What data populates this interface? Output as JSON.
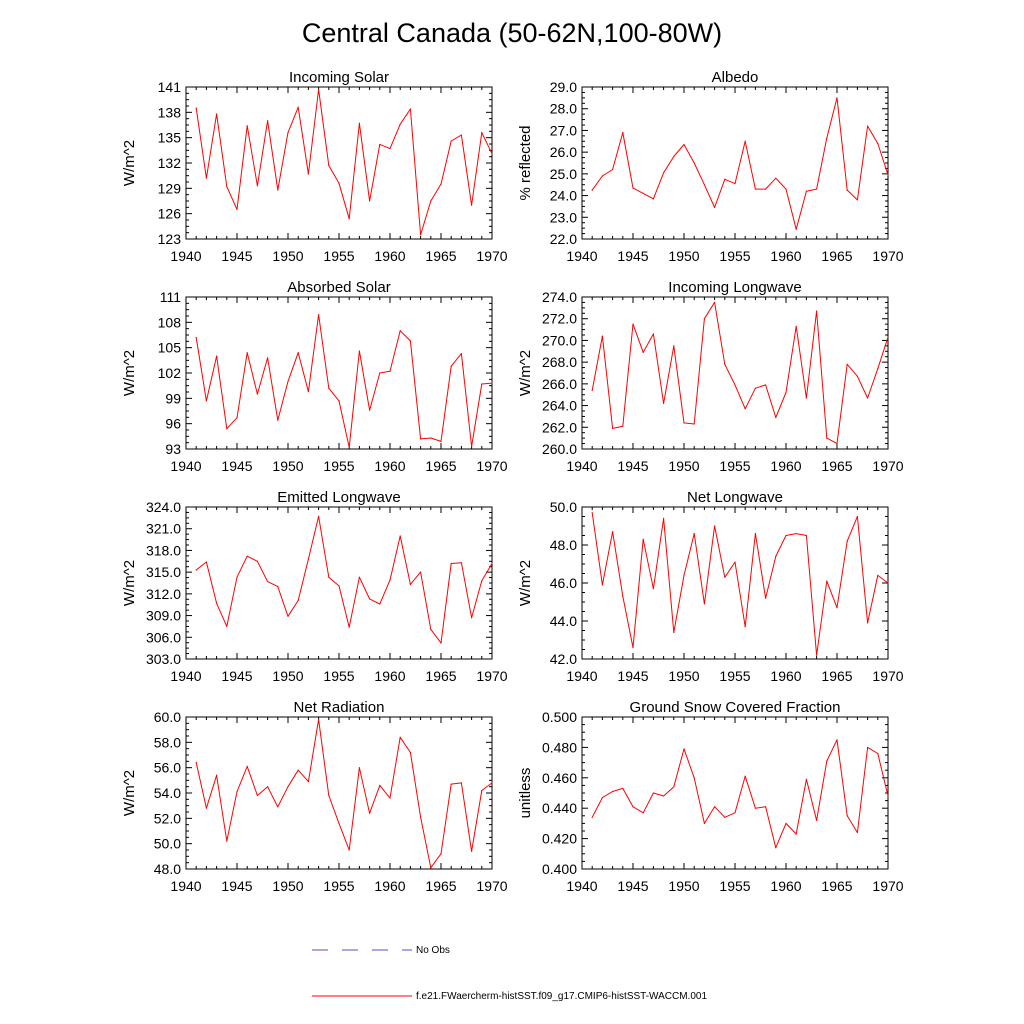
{
  "title": "Central Canada (50-62N,100-80W)",
  "chart_data": [
    {
      "type": "line",
      "title": "Incoming Solar",
      "ylabel": "W/m^2",
      "xlim": [
        1940,
        1970
      ],
      "ylim": [
        123,
        141
      ],
      "xticks": [
        1940,
        1945,
        1950,
        1955,
        1960,
        1965,
        1970
      ],
      "xtick_labels": [
        "1940",
        "1945",
        "1950",
        "1955",
        "1960",
        "1965",
        "1970"
      ],
      "yticks": [
        123,
        126,
        129,
        132,
        135,
        138,
        141
      ],
      "ytick_labels": [
        "123",
        "126",
        "129",
        "132",
        "135",
        "138",
        "141"
      ],
      "x": [
        1941,
        1942,
        1943,
        1944,
        1945,
        1946,
        1947,
        1948,
        1949,
        1950,
        1951,
        1952,
        1953,
        1954,
        1955,
        1956,
        1957,
        1958,
        1959,
        1960,
        1961,
        1962,
        1963,
        1964,
        1965,
        1966,
        1967,
        1968,
        1969,
        1970
      ],
      "series": [
        {
          "name": "f.e21.FWaercherm-histSST.f09_g17.CMIP6-histSST-WACCM.001",
          "color": "#ff0000",
          "values": [
            138.5,
            130.2,
            137.8,
            129.2,
            126.5,
            136.4,
            129.3,
            137.0,
            128.8,
            135.6,
            138.6,
            130.7,
            140.7,
            131.7,
            129.6,
            125.4,
            136.7,
            127.5,
            134.2,
            133.7,
            136.6,
            138.4,
            123.5,
            127.5,
            129.5,
            134.6,
            135.3,
            127.0,
            135.6,
            133.1
          ]
        }
      ]
    },
    {
      "type": "line",
      "title": "Albedo",
      "ylabel": "% reflected",
      "xlim": [
        1940,
        1970
      ],
      "ylim": [
        22.0,
        29.0
      ],
      "xticks": [
        1940,
        1945,
        1950,
        1955,
        1960,
        1965,
        1970
      ],
      "xtick_labels": [
        "1940",
        "1945",
        "1950",
        "1955",
        "1960",
        "1965",
        "1970"
      ],
      "yticks": [
        22.0,
        23.0,
        24.0,
        25.0,
        26.0,
        27.0,
        28.0,
        29.0
      ],
      "ytick_labels": [
        "22.0",
        "23.0",
        "24.0",
        "25.0",
        "26.0",
        "27.0",
        "28.0",
        "29.0"
      ],
      "x": [
        1941,
        1942,
        1943,
        1944,
        1945,
        1946,
        1947,
        1948,
        1949,
        1950,
        1951,
        1952,
        1953,
        1954,
        1955,
        1956,
        1957,
        1958,
        1959,
        1960,
        1961,
        1962,
        1963,
        1964,
        1965,
        1966,
        1967,
        1968,
        1969,
        1970
      ],
      "series": [
        {
          "name": "f.e21.FWaercherm-histSST.f09_g17.CMIP6-histSST-WACCM.001",
          "color": "#ff0000",
          "values": [
            24.25,
            24.9,
            25.2,
            26.9,
            24.35,
            24.1,
            23.85,
            25.05,
            25.8,
            26.35,
            25.5,
            24.5,
            23.45,
            24.75,
            24.55,
            26.5,
            24.3,
            24.3,
            24.8,
            24.3,
            22.45,
            24.2,
            24.3,
            26.65,
            28.5,
            24.25,
            23.8,
            27.2,
            26.4,
            24.95
          ]
        }
      ]
    },
    {
      "type": "line",
      "title": "Absorbed Solar",
      "ylabel": "W/m^2",
      "xlim": [
        1940,
        1970
      ],
      "ylim": [
        93,
        111
      ],
      "xticks": [
        1940,
        1945,
        1950,
        1955,
        1960,
        1965,
        1970
      ],
      "xtick_labels": [
        "1940",
        "1945",
        "1950",
        "1955",
        "1960",
        "1965",
        "1970"
      ],
      "yticks": [
        93,
        96,
        99,
        102,
        105,
        108,
        111
      ],
      "ytick_labels": [
        "93",
        "96",
        "99",
        "102",
        "105",
        "108",
        "111"
      ],
      "x": [
        1941,
        1942,
        1943,
        1944,
        1945,
        1946,
        1947,
        1948,
        1949,
        1950,
        1951,
        1952,
        1953,
        1954,
        1955,
        1956,
        1957,
        1958,
        1959,
        1960,
        1961,
        1962,
        1963,
        1964,
        1965,
        1966,
        1967,
        1968,
        1969,
        1970
      ],
      "series": [
        {
          "name": "f.e21.FWaercherm-histSST.f09_g17.CMIP6-histSST-WACCM.001",
          "color": "#ff0000",
          "values": [
            106.2,
            98.7,
            104.0,
            95.4,
            96.7,
            104.4,
            99.5,
            103.8,
            96.4,
            101.0,
            104.4,
            99.8,
            108.9,
            100.2,
            98.7,
            93.2,
            104.6,
            97.6,
            102.0,
            102.2,
            107.0,
            105.8,
            94.2,
            94.3,
            93.9,
            102.8,
            104.3,
            93.3,
            100.7,
            100.8
          ]
        }
      ]
    },
    {
      "type": "line",
      "title": "Incoming Longwave",
      "ylabel": "W/m^2",
      "xlim": [
        1940,
        1970
      ],
      "ylim": [
        260.0,
        274.0
      ],
      "xticks": [
        1940,
        1945,
        1950,
        1955,
        1960,
        1965,
        1970
      ],
      "xtick_labels": [
        "1940",
        "1945",
        "1950",
        "1955",
        "1960",
        "1965",
        "1970"
      ],
      "yticks": [
        260.0,
        262.0,
        264.0,
        266.0,
        268.0,
        270.0,
        272.0,
        274.0
      ],
      "ytick_labels": [
        "260.0",
        "262.0",
        "264.0",
        "266.0",
        "268.0",
        "270.0",
        "272.0",
        "274.0"
      ],
      "x": [
        1941,
        1942,
        1943,
        1944,
        1945,
        1946,
        1947,
        1948,
        1949,
        1950,
        1951,
        1952,
        1953,
        1954,
        1955,
        1956,
        1957,
        1958,
        1959,
        1960,
        1961,
        1962,
        1963,
        1964,
        1965,
        1966,
        1967,
        1968,
        1969,
        1970
      ],
      "series": [
        {
          "name": "f.e21.FWaercherm-histSST.f09_g17.CMIP6-histSST-WACCM.001",
          "color": "#ff0000",
          "values": [
            265.4,
            270.4,
            261.9,
            262.1,
            271.5,
            268.9,
            270.6,
            264.2,
            269.5,
            262.4,
            262.3,
            272.0,
            273.5,
            267.8,
            265.9,
            263.7,
            265.6,
            265.9,
            262.9,
            265.2,
            271.3,
            264.7,
            272.7,
            261.0,
            260.5,
            267.8,
            266.7,
            264.7,
            267.4,
            270.3
          ]
        }
      ]
    },
    {
      "type": "line",
      "title": "Emitted Longwave",
      "ylabel": "W/m^2",
      "xlim": [
        1940,
        1970
      ],
      "ylim": [
        303.0,
        324.0
      ],
      "xticks": [
        1940,
        1945,
        1950,
        1955,
        1960,
        1965,
        1970
      ],
      "xtick_labels": [
        "1940",
        "1945",
        "1950",
        "1955",
        "1960",
        "1965",
        "1970"
      ],
      "yticks": [
        303.0,
        306.0,
        309.0,
        312.0,
        315.0,
        318.0,
        321.0,
        324.0
      ],
      "ytick_labels": [
        "303.0",
        "306.0",
        "309.0",
        "312.0",
        "315.0",
        "318.0",
        "321.0",
        "324.0"
      ],
      "x": [
        1941,
        1942,
        1943,
        1944,
        1945,
        1946,
        1947,
        1948,
        1949,
        1950,
        1951,
        1952,
        1953,
        1954,
        1955,
        1956,
        1957,
        1958,
        1959,
        1960,
        1961,
        1962,
        1963,
        1964,
        1965,
        1966,
        1967,
        1968,
        1969,
        1970
      ],
      "series": [
        {
          "name": "f.e21.FWaercherm-histSST.f09_g17.CMIP6-histSST-WACCM.001",
          "color": "#ff0000",
          "values": [
            315.3,
            316.4,
            310.7,
            307.5,
            314.3,
            317.2,
            316.5,
            313.7,
            313.0,
            308.9,
            311.1,
            316.8,
            322.7,
            314.3,
            313.1,
            307.4,
            314.3,
            311.3,
            310.6,
            313.9,
            320.0,
            313.3,
            315.0,
            307.1,
            305.2,
            316.2,
            316.3,
            308.7,
            313.8,
            316.2
          ]
        }
      ]
    },
    {
      "type": "line",
      "title": "Net Longwave",
      "ylabel": "W/m^2",
      "xlim": [
        1940,
        1970
      ],
      "ylim": [
        42.0,
        50.0
      ],
      "xticks": [
        1940,
        1945,
        1950,
        1955,
        1960,
        1965,
        1970
      ],
      "xtick_labels": [
        "1940",
        "1945",
        "1950",
        "1955",
        "1960",
        "1965",
        "1970"
      ],
      "yticks": [
        42.0,
        44.0,
        46.0,
        48.0,
        50.0
      ],
      "ytick_labels": [
        "42.0",
        "44.0",
        "46.0",
        "48.0",
        "50.0"
      ],
      "x": [
        1941,
        1942,
        1943,
        1944,
        1945,
        1946,
        1947,
        1948,
        1949,
        1950,
        1951,
        1952,
        1953,
        1954,
        1955,
        1956,
        1957,
        1958,
        1959,
        1960,
        1961,
        1962,
        1963,
        1964,
        1965,
        1966,
        1967,
        1968,
        1969,
        1970
      ],
      "series": [
        {
          "name": "f.e21.FWaercherm-histSST.f09_g17.CMIP6-histSST-WACCM.001",
          "color": "#ff0000",
          "values": [
            49.7,
            45.9,
            48.7,
            45.3,
            42.6,
            48.3,
            45.7,
            49.4,
            43.4,
            46.4,
            48.6,
            44.9,
            49.0,
            46.3,
            47.1,
            43.7,
            48.6,
            45.2,
            47.4,
            48.5,
            48.6,
            48.5,
            42.2,
            46.1,
            44.7,
            48.2,
            49.5,
            43.9,
            46.4,
            46.0
          ]
        }
      ]
    },
    {
      "type": "line",
      "title": "Net Radiation",
      "ylabel": "W/m^2",
      "xlim": [
        1940,
        1970
      ],
      "ylim": [
        48.0,
        60.0
      ],
      "xticks": [
        1940,
        1945,
        1950,
        1955,
        1960,
        1965,
        1970
      ],
      "xtick_labels": [
        "1940",
        "1945",
        "1950",
        "1955",
        "1960",
        "1965",
        "1970"
      ],
      "yticks": [
        48.0,
        50.0,
        52.0,
        54.0,
        56.0,
        58.0,
        60.0
      ],
      "ytick_labels": [
        "48.0",
        "50.0",
        "52.0",
        "54.0",
        "56.0",
        "58.0",
        "60.0"
      ],
      "x": [
        1941,
        1942,
        1943,
        1944,
        1945,
        1946,
        1947,
        1948,
        1949,
        1950,
        1951,
        1952,
        1953,
        1954,
        1955,
        1956,
        1957,
        1958,
        1959,
        1960,
        1961,
        1962,
        1963,
        1964,
        1965,
        1966,
        1967,
        1968,
        1969,
        1970
      ],
      "series": [
        {
          "name": "f.e21.FWaercherm-histSST.f09_g17.CMIP6-histSST-WACCM.001",
          "color": "#ff0000",
          "values": [
            56.4,
            52.8,
            55.4,
            50.2,
            54.1,
            56.1,
            53.8,
            54.5,
            52.9,
            54.5,
            55.8,
            54.9,
            59.8,
            53.8,
            51.6,
            49.5,
            56.0,
            52.4,
            54.6,
            53.6,
            58.4,
            57.2,
            52.1,
            48.1,
            49.2,
            54.7,
            54.8,
            49.4,
            54.2,
            54.8
          ]
        }
      ]
    },
    {
      "type": "line",
      "title": "Ground Snow Covered Fraction",
      "ylabel": "unitless",
      "xlim": [
        1940,
        1970
      ],
      "ylim": [
        0.4,
        0.5
      ],
      "xticks": [
        1940,
        1945,
        1950,
        1955,
        1960,
        1965,
        1970
      ],
      "xtick_labels": [
        "1940",
        "1945",
        "1950",
        "1955",
        "1960",
        "1965",
        "1970"
      ],
      "yticks": [
        0.4,
        0.42,
        0.44,
        0.46,
        0.48,
        0.5
      ],
      "ytick_labels": [
        "0.400",
        "0.420",
        "0.440",
        "0.460",
        "0.480",
        "0.500"
      ],
      "x": [
        1941,
        1942,
        1943,
        1944,
        1945,
        1946,
        1947,
        1948,
        1949,
        1950,
        1951,
        1952,
        1953,
        1954,
        1955,
        1956,
        1957,
        1958,
        1959,
        1960,
        1961,
        1962,
        1963,
        1964,
        1965,
        1966,
        1967,
        1968,
        1969,
        1970
      ],
      "series": [
        {
          "name": "f.e21.FWaercherm-histSST.f09_g17.CMIP6-histSST-WACCM.001",
          "color": "#ff0000",
          "values": [
            0.434,
            0.447,
            0.451,
            0.453,
            0.441,
            0.437,
            0.45,
            0.448,
            0.454,
            0.479,
            0.46,
            0.43,
            0.441,
            0.434,
            0.437,
            0.461,
            0.44,
            0.441,
            0.414,
            0.43,
            0.423,
            0.459,
            0.432,
            0.471,
            0.485,
            0.435,
            0.424,
            0.48,
            0.476,
            0.448
          ]
        }
      ]
    }
  ],
  "legend": [
    {
      "label": "No Obs",
      "color": "#5050c8",
      "style": "dashed"
    },
    {
      "label": "f.e21.FWaercherm-histSST.f09_g17.CMIP6-histSST-WACCM.001",
      "color": "#ff0000",
      "style": "solid"
    }
  ]
}
